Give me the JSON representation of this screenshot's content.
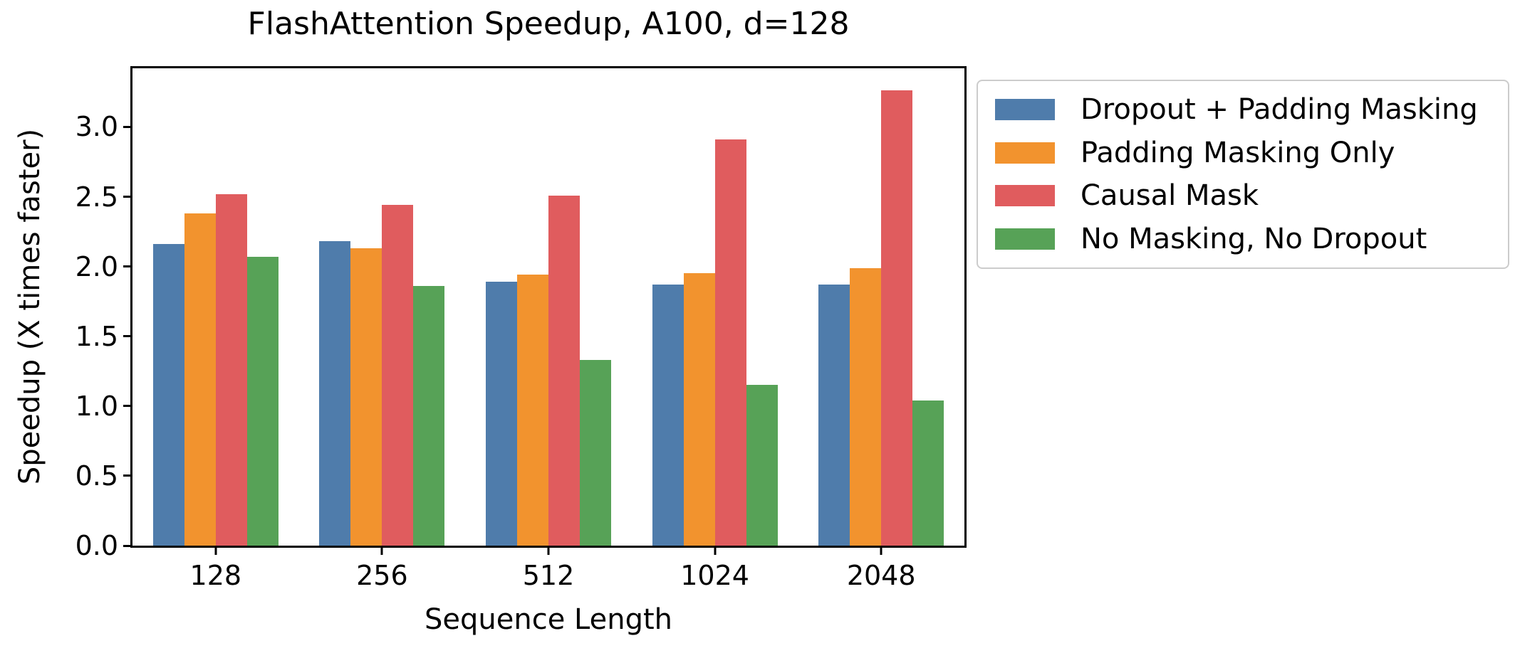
{
  "chart_data": {
    "type": "bar",
    "title": "FlashAttention Speedup, A100, d=128",
    "xlabel": "Sequence Length",
    "ylabel": "Speedup (X times faster)",
    "categories": [
      "128",
      "256",
      "512",
      "1024",
      "2048"
    ],
    "series": [
      {
        "name": "Dropout + Padding Masking",
        "color": "#4F7CAB",
        "values": [
          2.16,
          2.18,
          1.89,
          1.87,
          1.87
        ]
      },
      {
        "name": "Padding Masking Only",
        "color": "#F2932E",
        "values": [
          2.38,
          2.13,
          1.94,
          1.95,
          1.99
        ]
      },
      {
        "name": "Causal Mask",
        "color": "#E05C5E",
        "values": [
          2.52,
          2.44,
          2.51,
          2.91,
          3.26
        ]
      },
      {
        "name": "No Masking, No Dropout",
        "color": "#57A257",
        "values": [
          2.07,
          1.86,
          1.33,
          1.15,
          1.04
        ]
      }
    ],
    "ylim": [
      0,
      3.42
    ],
    "yticks": [
      0.0,
      0.5,
      1.0,
      1.5,
      2.0,
      2.5,
      3.0
    ],
    "ytick_labels": [
      "0.0",
      "0.5",
      "1.0",
      "1.5",
      "2.0",
      "2.5",
      "3.0"
    ],
    "grid": false,
    "legend_position": "outside-right-top",
    "spine_color": "#000000",
    "legend_border_color": "#cccccc"
  }
}
